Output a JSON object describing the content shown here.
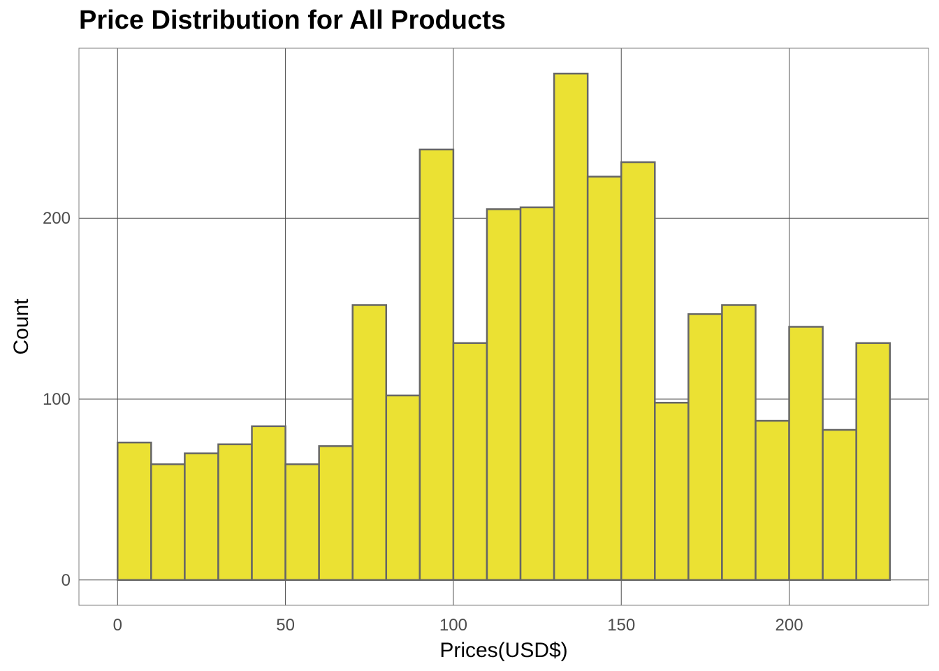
{
  "chart_data": {
    "type": "bar",
    "title": "Price Distribution for All Products",
    "xlabel": "Prices(USD$)",
    "ylabel": "Count",
    "bin_width": 10,
    "bins": [
      {
        "x0": 0,
        "x1": 10,
        "count": 76
      },
      {
        "x0": 10,
        "x1": 20,
        "count": 64
      },
      {
        "x0": 20,
        "x1": 30,
        "count": 70
      },
      {
        "x0": 30,
        "x1": 40,
        "count": 75
      },
      {
        "x0": 40,
        "x1": 50,
        "count": 85
      },
      {
        "x0": 50,
        "x1": 60,
        "count": 64
      },
      {
        "x0": 60,
        "x1": 70,
        "count": 74
      },
      {
        "x0": 70,
        "x1": 80,
        "count": 152
      },
      {
        "x0": 80,
        "x1": 90,
        "count": 102
      },
      {
        "x0": 90,
        "x1": 100,
        "count": 238
      },
      {
        "x0": 100,
        "x1": 110,
        "count": 131
      },
      {
        "x0": 110,
        "x1": 120,
        "count": 205
      },
      {
        "x0": 120,
        "x1": 130,
        "count": 206
      },
      {
        "x0": 130,
        "x1": 140,
        "count": 280
      },
      {
        "x0": 140,
        "x1": 150,
        "count": 223
      },
      {
        "x0": 150,
        "x1": 160,
        "count": 231
      },
      {
        "x0": 160,
        "x1": 170,
        "count": 98
      },
      {
        "x0": 170,
        "x1": 180,
        "count": 147
      },
      {
        "x0": 180,
        "x1": 190,
        "count": 152
      },
      {
        "x0": 190,
        "x1": 200,
        "count": 88
      },
      {
        "x0": 200,
        "x1": 210,
        "count": 140
      },
      {
        "x0": 210,
        "x1": 220,
        "count": 83
      },
      {
        "x0": 220,
        "x1": 230,
        "count": 131
      }
    ],
    "x_ticks": [
      0,
      50,
      100,
      150,
      200
    ],
    "y_ticks": [
      0,
      100,
      200
    ],
    "xlim": [
      -11.5,
      241.5
    ],
    "ylim": [
      -14,
      294
    ],
    "grid": true,
    "legend": "none",
    "colors": {
      "bar_fill": "#ebe133",
      "bar_stroke": "#666666",
      "grid": "#4d4d4d",
      "panel_border": "#7f7f7f",
      "tick_text": "#4d4d4d"
    }
  }
}
